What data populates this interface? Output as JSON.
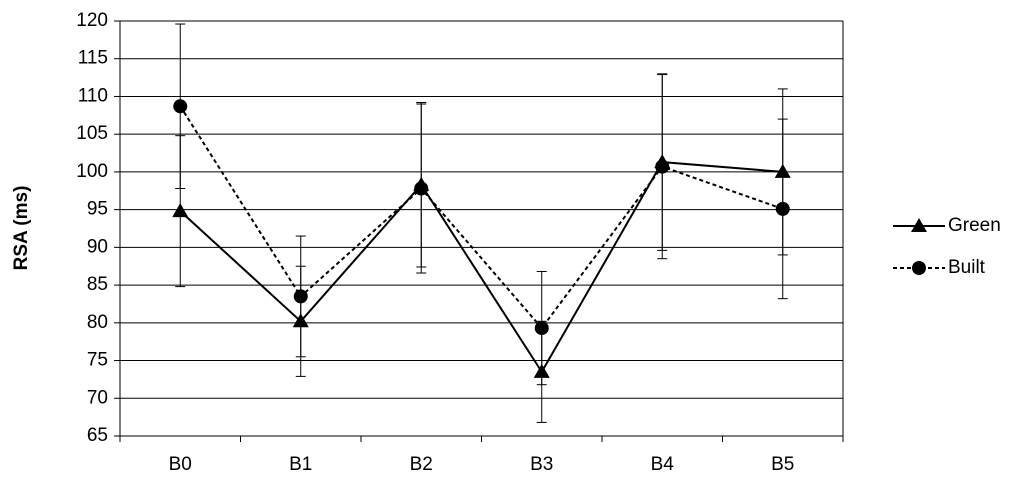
{
  "chart_data": {
    "type": "line",
    "y_label": "RSA (ms)",
    "categories": [
      "B0",
      "B1",
      "B2",
      "B3",
      "B4",
      "B5"
    ],
    "series": [
      {
        "name": "Green",
        "color": "#000000",
        "dash": false,
        "marker": "triangle",
        "values": [
          94.8,
          80.2,
          98.3,
          73.5,
          101.3,
          100
        ],
        "errors": [
          10,
          7.3,
          10.9,
          6.7,
          11.7,
          11
        ]
      },
      {
        "name": "Built",
        "color": "#000000",
        "dash": true,
        "marker": "circle",
        "values": [
          108.7,
          83.5,
          97.8,
          79.3,
          100.7,
          95.1
        ],
        "errors": [
          10.9,
          8,
          11.2,
          7.5,
          12.2,
          11.9
        ]
      }
    ],
    "ylim": [
      65,
      120
    ],
    "yticks": [
      65,
      70,
      75,
      80,
      85,
      90,
      95,
      100,
      105,
      110,
      115,
      120
    ],
    "grid": true,
    "legend": "right"
  }
}
